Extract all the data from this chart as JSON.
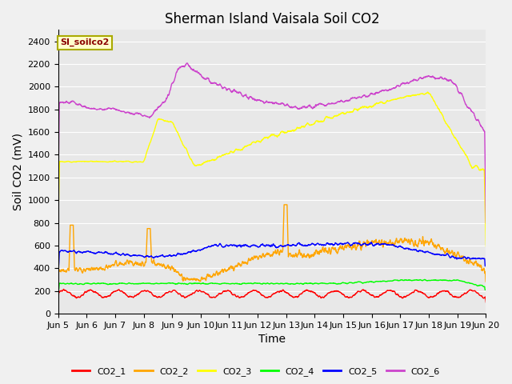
{
  "title": "Sherman Island Vaisala Soil CO2",
  "ylabel": "Soil CO2 (mV)",
  "xlabel": "Time",
  "legend_label": "SI_soilco2",
  "ylim": [
    0,
    2500
  ],
  "xlim": [
    0,
    15
  ],
  "xtick_labels": [
    "Jun 5",
    "Jun 6",
    "Jun 7",
    "Jun 8",
    "Jun 9",
    "Jun 10",
    "Jun 11",
    "Jun 12",
    "Jun 13",
    "Jun 14",
    "Jun 15",
    "Jun 16",
    "Jun 17",
    "Jun 18",
    "Jun 19",
    "Jun 20"
  ],
  "ytick_values": [
    0,
    200,
    400,
    600,
    800,
    1000,
    1200,
    1400,
    1600,
    1800,
    2000,
    2200,
    2400
  ],
  "colors": {
    "CO2_1": "#ff0000",
    "CO2_2": "#ffa500",
    "CO2_3": "#ffff00",
    "CO2_4": "#00ff00",
    "CO2_5": "#0000ff",
    "CO2_6": "#cc44cc"
  },
  "fig_bg": "#f0f0f0",
  "plot_bg": "#e8e8e8",
  "grid_color": "#ffffff",
  "title_fontsize": 12,
  "axis_fontsize": 10,
  "tick_fontsize": 8,
  "legend_label_color": "#8b0000",
  "legend_box_facecolor": "#ffffcc",
  "legend_box_edgecolor": "#aaaa00"
}
